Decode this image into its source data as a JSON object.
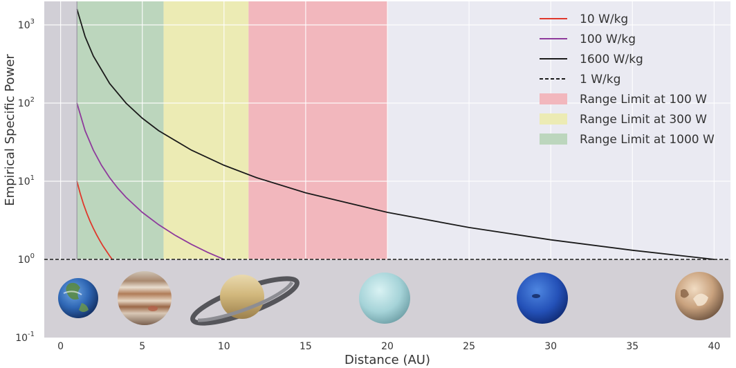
{
  "chart_data": {
    "type": "line",
    "xlabel": "Distance (AU)",
    "ylabel": "Empirical Specific Power",
    "xlim": [
      -1,
      41
    ],
    "ylim": [
      0.1,
      2000
    ],
    "yscale": "log",
    "grid": true,
    "legend_position": "top-right",
    "x_ticks": [
      0,
      5,
      10,
      15,
      20,
      25,
      30,
      35,
      40
    ],
    "x_tick_labels": [
      "0",
      "5",
      "10",
      "15",
      "20",
      "25",
      "30",
      "35",
      "40"
    ],
    "y_ticks": [
      0.1,
      1,
      10,
      100,
      1000
    ],
    "y_tick_labels": [
      {
        "base": "10",
        "exp": "-1"
      },
      {
        "base": "10",
        "exp": "0"
      },
      {
        "base": "10",
        "exp": "1"
      },
      {
        "base": "10",
        "exp": "2"
      },
      {
        "base": "10",
        "exp": "3"
      }
    ],
    "series": [
      {
        "name": "10 W/kg",
        "color": "#e0372b",
        "style": "solid",
        "x": [
          1,
          1.2,
          1.4,
          1.6,
          1.8,
          2,
          2.2,
          2.4,
          2.6,
          2.8,
          3,
          3.16
        ],
        "y": [
          10,
          6.94,
          5.1,
          3.91,
          3.09,
          2.5,
          2.07,
          1.74,
          1.48,
          1.28,
          1.11,
          1.0
        ]
      },
      {
        "name": "100 W/kg",
        "color": "#8e3a9c",
        "style": "solid",
        "x": [
          1,
          1.5,
          2,
          2.5,
          3,
          3.5,
          4,
          5,
          6,
          7,
          8,
          9,
          10
        ],
        "y": [
          100,
          44.4,
          25,
          16,
          11.1,
          8.16,
          6.25,
          4.0,
          2.78,
          2.04,
          1.56,
          1.23,
          1.0
        ]
      },
      {
        "name": "1600 W/kg",
        "color": "#1a1a1a",
        "style": "solid",
        "x": [
          1,
          1.5,
          2,
          3,
          4,
          5,
          6,
          8,
          10,
          12,
          15,
          20,
          25,
          30,
          35,
          40
        ],
        "y": [
          1600,
          711,
          400,
          178,
          100,
          64,
          44.4,
          25,
          16,
          11.1,
          7.11,
          4.0,
          2.56,
          1.78,
          1.31,
          1.0
        ]
      },
      {
        "name": "1 W/kg",
        "color": "#1a1a1a",
        "style": "dashed",
        "x": [
          -1,
          41
        ],
        "y": [
          1,
          1
        ]
      }
    ],
    "regions": [
      {
        "name": "Range Limit at 100 W",
        "x_start": 11.5,
        "x_end": 20,
        "color": "#f2b7bd"
      },
      {
        "name": "Range Limit at 300 W",
        "x_start": 6.3,
        "x_end": 11.5,
        "color": "#ecebb4"
      },
      {
        "name": "Range Limit at 1000 W",
        "x_start": 1,
        "x_end": 6.3,
        "color": "#bcd6bd"
      }
    ],
    "planets": [
      {
        "name": "earth",
        "x": 1.2
      },
      {
        "name": "jupiter",
        "x": 5.2
      },
      {
        "name": "saturn",
        "x": 9.6
      },
      {
        "name": "uranus",
        "x": 19.2
      },
      {
        "name": "neptune",
        "x": 30.1
      },
      {
        "name": "pluto",
        "x": 39.5
      }
    ],
    "colors": {
      "plot_background": "#eaeaf2",
      "grid": "#ffffff",
      "shaded_left": "#d1cfd6",
      "lower_band": "#d3d0d6",
      "vertical_marker": "#9a94a2"
    }
  }
}
